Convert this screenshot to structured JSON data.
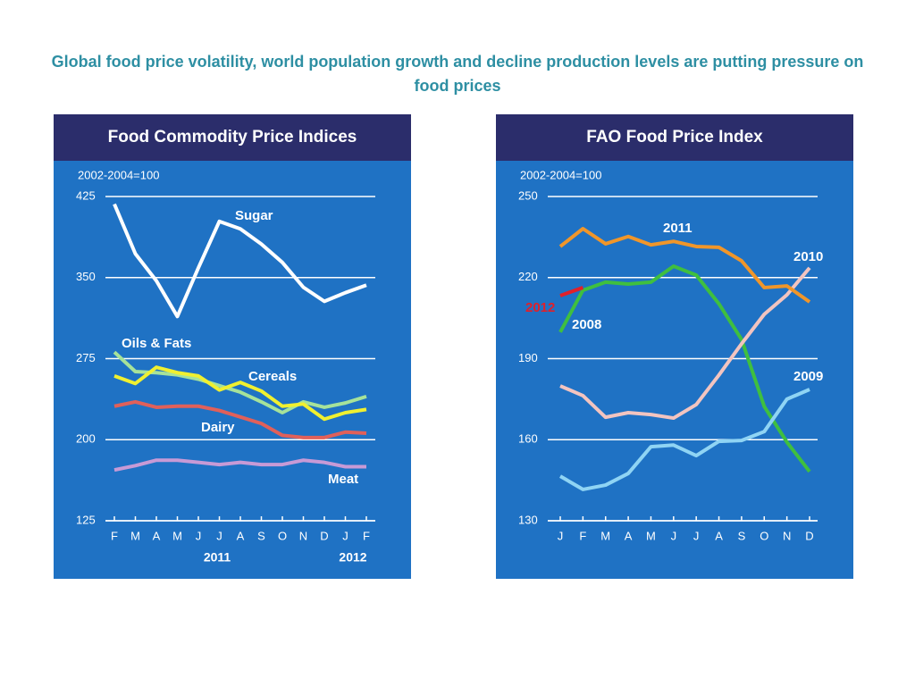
{
  "page_title": "Global food price volatility, world population growth and decline production levels are putting pressure on food prices",
  "chart_data": [
    {
      "type": "line",
      "title": "Food Commodity Price Indices",
      "subtitle": "2002-2004=100",
      "categories": [
        "F",
        "M",
        "A",
        "M",
        "J",
        "J",
        "A",
        "S",
        "O",
        "N",
        "D",
        "J",
        "F"
      ],
      "year_labels": [
        "2011",
        "2012"
      ],
      "ylim": [
        125,
        425
      ],
      "yticks": [
        125,
        200,
        275,
        350,
        425
      ],
      "grid": true,
      "series": [
        {
          "name": "Sugar",
          "color": "#ffffff",
          "values": [
            418,
            372,
            347,
            314,
            359,
            402,
            395,
            381,
            364,
            341,
            328,
            336,
            343
          ]
        },
        {
          "name": "Oils & Fats",
          "color": "#a6e29a",
          "values": [
            281,
            263,
            262,
            260,
            256,
            250,
            244,
            235,
            225,
            235,
            230,
            234,
            240
          ]
        },
        {
          "name": "Cereals",
          "color": "#f0f030",
          "values": [
            259,
            252,
            267,
            262,
            259,
            246,
            253,
            245,
            231,
            233,
            219,
            225,
            228
          ]
        },
        {
          "name": "Dairy",
          "color": "#e0605a",
          "values": [
            231,
            235,
            230,
            231,
            231,
            227,
            221,
            215,
            204,
            202,
            202,
            207,
            206
          ]
        },
        {
          "name": "Meat",
          "color": "#c79ad6",
          "values": [
            172,
            176,
            181,
            181,
            179,
            177,
            179,
            177,
            177,
            181,
            179,
            175,
            175
          ]
        }
      ]
    },
    {
      "type": "line",
      "title": "FAO Food Price Index",
      "subtitle": "2002-2004=100",
      "categories": [
        "J",
        "F",
        "M",
        "A",
        "M",
        "J",
        "J",
        "A",
        "S",
        "O",
        "N",
        "D"
      ],
      "ylim": [
        130,
        250
      ],
      "yticks": [
        130,
        160,
        190,
        220,
        250
      ],
      "grid": true,
      "series": [
        {
          "name": "2008",
          "color": "#3fbf3f",
          "values": [
            199.8,
            215.3,
            218.3,
            217.6,
            218.3,
            224.2,
            220.9,
            210.3,
            197.1,
            172.3,
            159.1,
            148.2
          ]
        },
        {
          "name": "2009",
          "color": "#8fd4f4",
          "values": [
            146.5,
            141.6,
            143.2,
            147.5,
            157.4,
            158.0,
            154.1,
            159.4,
            159.7,
            163.0,
            175.0,
            178.6
          ]
        },
        {
          "name": "2010",
          "color": "#f2c4c0",
          "values": [
            179.9,
            176.3,
            168.3,
            170.0,
            169.3,
            168.0,
            173.0,
            183.9,
            195.5,
            206.4,
            213.6,
            223.6
          ]
        },
        {
          "name": "2011",
          "color": "#f0962a",
          "values": [
            231.5,
            238.1,
            232.5,
            235.2,
            232.1,
            233.4,
            231.5,
            231.2,
            226.2,
            216.3,
            216.9,
            211.0
          ]
        },
        {
          "name": "2012",
          "color": "#e0202a",
          "values": [
            213.3,
            216.3,
            null,
            null,
            null,
            null,
            null,
            null,
            null,
            null,
            null,
            null
          ]
        }
      ]
    }
  ]
}
